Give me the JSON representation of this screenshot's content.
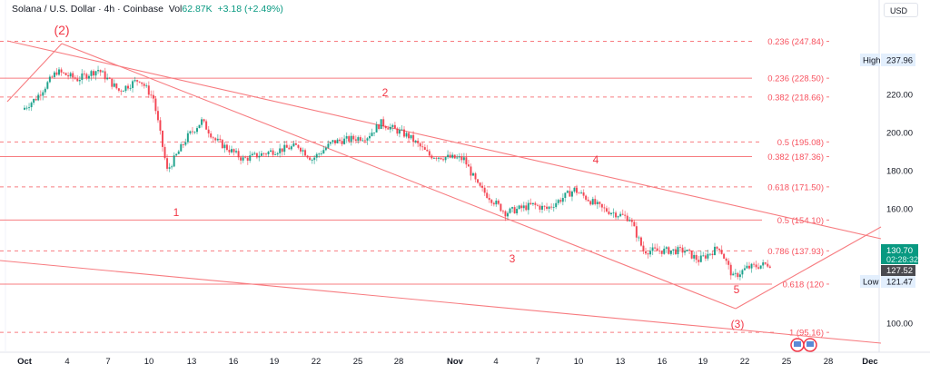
{
  "header": {
    "symbol": "Solana / U.S. Dollar · 4h · Coinbase",
    "vol_label": "Vol",
    "vol_value": "62.87K",
    "change": "+3.18 (+2.49%)"
  },
  "currency": "USD",
  "colors": {
    "up": "#089981",
    "down": "#f23645",
    "fib": "#f7525f",
    "line": "#f77c80"
  },
  "chart_data": {
    "type": "candlestick",
    "ylim": [
      88,
      262
    ],
    "y_ticks": [
      "220.00",
      "200.00",
      "180.00",
      "160.00",
      "100.00"
    ],
    "x_ticks": [
      "Oct",
      "4",
      "7",
      "10",
      "13",
      "16",
      "19",
      "22",
      "25",
      "28",
      "Nov",
      "4",
      "7",
      "10",
      "13",
      "16",
      "19",
      "22",
      "25",
      "28",
      "Dec"
    ],
    "price_path": [
      [
        0,
        212
      ],
      [
        1,
        218
      ],
      [
        2.5,
        232
      ],
      [
        4,
        228
      ],
      [
        5.5,
        233
      ],
      [
        7,
        222
      ],
      [
        8.5,
        228
      ],
      [
        9.5,
        218
      ],
      [
        10.5,
        180
      ],
      [
        12,
        198
      ],
      [
        13,
        206
      ],
      [
        14,
        196
      ],
      [
        16,
        186
      ],
      [
        18,
        190
      ],
      [
        20,
        193
      ],
      [
        21,
        186
      ],
      [
        22.5,
        195
      ],
      [
        25,
        198
      ],
      [
        26,
        205
      ],
      [
        28,
        198
      ],
      [
        29.5,
        188
      ],
      [
        32,
        186
      ],
      [
        33,
        172
      ],
      [
        35,
        158
      ],
      [
        37,
        162
      ],
      [
        38,
        160
      ],
      [
        40,
        170
      ],
      [
        42,
        160
      ],
      [
        44,
        155
      ],
      [
        45,
        138
      ],
      [
        48,
        138
      ],
      [
        49,
        133
      ],
      [
        50.5,
        140
      ],
      [
        51.5,
        124
      ],
      [
        52.5,
        129
      ],
      [
        54,
        131
      ]
    ],
    "fib_levels": [
      {
        "label": "0.236 (247.84)",
        "price": 247.84,
        "style": "dashed"
      },
      {
        "label": "0.236 (228.50)",
        "price": 228.5,
        "style": "solid"
      },
      {
        "label": "0.382 (218.66)",
        "price": 218.66,
        "style": "dashed"
      },
      {
        "label": "0.5 (195.08)",
        "price": 195.08,
        "style": "dashed"
      },
      {
        "label": "0.382 (187.36)",
        "price": 187.36,
        "style": "solid"
      },
      {
        "label": "0.618 (171.50)",
        "price": 171.5,
        "style": "dashed"
      },
      {
        "label": "0.5 (154.10)",
        "price": 154.1,
        "style": "solid"
      },
      {
        "label": "0.786 (137.93)",
        "price": 137.93,
        "style": "dashed"
      },
      {
        "label": "0.618 (120",
        "price": 120.5,
        "style": "solid"
      },
      {
        "label": "1 (95.16)",
        "price": 95.16,
        "style": "dashed"
      }
    ],
    "wave_labels": [
      "(2)",
      "1",
      "2",
      "3",
      "4",
      "5",
      "(3)"
    ],
    "high": {
      "label": "High",
      "value": "237.96"
    },
    "low": {
      "label": "Low",
      "value": "121.47"
    },
    "last": {
      "value": "130.70",
      "countdown": "02:28:32"
    },
    "prev": {
      "value": "127.52"
    }
  }
}
